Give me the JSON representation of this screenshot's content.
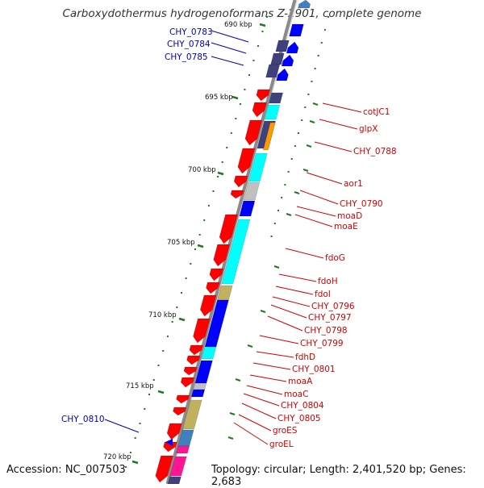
{
  "title": "Carboxydothermus hydrogenoformans Z-2901, complete genome",
  "footer": {
    "accession": "Accession: NC_007503",
    "topology": "Topology: circular; Length: 2,401,520 bp; Genes: 2,683"
  },
  "ticks": [
    "695 kbp",
    "700 kbp",
    "705 kbp",
    "710 kbp",
    "715 kbp",
    "720 kbp"
  ],
  "top_tick_partial": "690 kbp",
  "colors": {
    "red": "#ff0000",
    "blue": "#0000ff",
    "cyan": "#00ffff",
    "navy": "#40407a",
    "olive": "#c0b060",
    "orange": "#ff9900",
    "gray": "#c0c0c0",
    "teal": "#4080c0",
    "magenta": "#ff1493",
    "label_red": "#d40000",
    "label_blue": "#0000b8",
    "tick_green": "#1f7a1f"
  },
  "genes_left": [
    "CHY_0783",
    "CHY_0784",
    "CHY_0785",
    "CHY_0810"
  ],
  "genes_right": [
    "cotJC1",
    "glpX",
    "CHY_0788",
    "aor1",
    "CHY_0790",
    "moaD",
    "moaE",
    "fdoG",
    "fdoH",
    "fdoI",
    "CHY_0796",
    "CHY_0797",
    "CHY_0798",
    "CHY_0799",
    "fdhD",
    "CHY_0801",
    "moaA",
    "moaC",
    "CHY_0804",
    "CHY_0805",
    "groES",
    "groEL"
  ]
}
